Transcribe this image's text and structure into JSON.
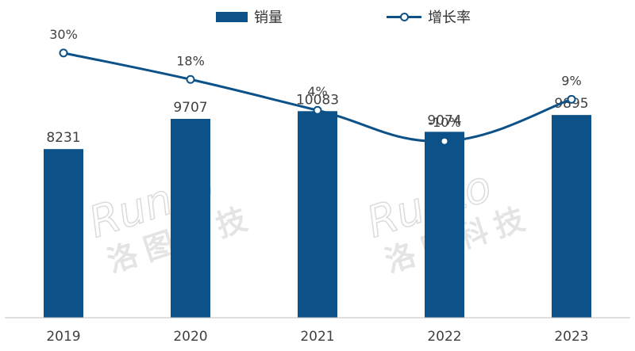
{
  "legend": {
    "bar_label": "销量",
    "line_label": "增长率"
  },
  "watermark": "Runto 洛图科技",
  "colors": {
    "bar": "#0c5188",
    "line": "#0c5188",
    "text": "#404040",
    "axis": "#bfbfbf"
  },
  "chart_data": {
    "type": "bar",
    "categories": [
      "2019",
      "2020",
      "2021",
      "2022",
      "2023"
    ],
    "series": [
      {
        "name": "销量",
        "type": "bar",
        "values": [
          8231,
          9707,
          10083,
          9074,
          9895
        ],
        "labels": [
          "8231",
          "9707",
          "10083",
          "9074",
          "9895"
        ]
      },
      {
        "name": "增长率",
        "type": "line",
        "values": [
          30,
          18,
          4,
          -10,
          9
        ],
        "labels": [
          "30%",
          "18%",
          "4%",
          "-10%",
          "9%"
        ]
      }
    ],
    "ylim": [
      0,
      14000
    ],
    "y2lim": [
      -90,
      40
    ],
    "legend_position": "top-center",
    "grid": false
  }
}
